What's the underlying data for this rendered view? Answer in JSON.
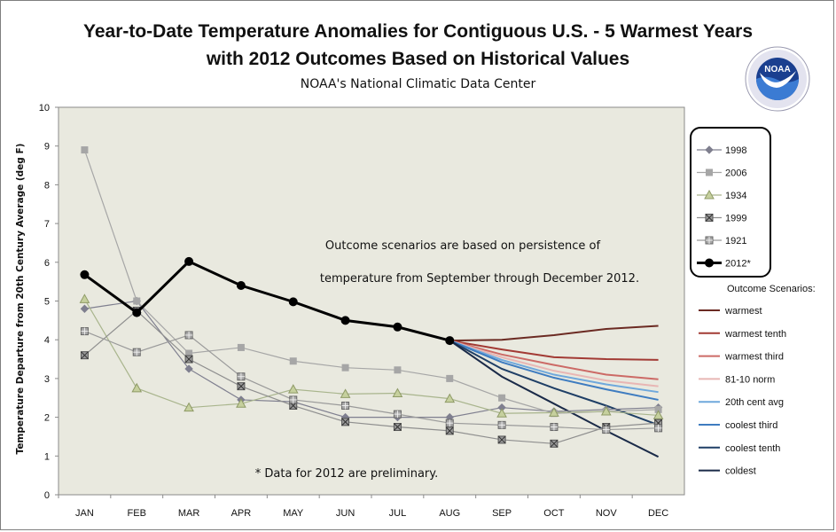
{
  "title_line1": "Year-to-Date Temperature Anomalies for Contiguous U.S. - 5 Warmest Years",
  "title_line2": "with 2012 Outcomes Based on Historical Values",
  "subtitle": "NOAA's National Climatic Data Center",
  "logo": {
    "icon": "noaa-logo",
    "text": "NOAA",
    "ring_text": "NATIONAL OCEANIC AND ATMOSPHERIC ADMINISTRATION · U.S. DEPARTMENT OF COMMERCE"
  },
  "annotations": {
    "scenario_line1": "Outcome scenarios are based on persistence of",
    "scenario_line2": "temperature from September through December 2012.",
    "preliminary_note": "* Data for 2012 are preliminary."
  },
  "outcome_header": "Outcome Scenarios:",
  "chart_data": {
    "type": "line",
    "title": "Year-to-Date Temperature Anomalies for Contiguous U.S. - 5 Warmest Years",
    "subtitle": "with 2012 Outcomes Based on Historical Values",
    "xlabel": "",
    "ylabel": "Temperature Departure from 20th Century Average (deg F)",
    "categories": [
      "JAN",
      "FEB",
      "MAR",
      "APR",
      "MAY",
      "JUN",
      "JUL",
      "AUG",
      "SEP",
      "OCT",
      "NOV",
      "DEC"
    ],
    "ylim": [
      0,
      10
    ],
    "yticks": [
      0,
      1,
      2,
      3,
      4,
      5,
      6,
      7,
      8,
      9,
      10
    ],
    "grid": false,
    "plot_background": "#e9e9df",
    "legend_position": "right",
    "series": [
      {
        "name": "1998",
        "color": "#7f7f8f",
        "marker": "diamond",
        "values": [
          4.8,
          5.0,
          3.25,
          2.45,
          2.4,
          2.0,
          2.0,
          2.0,
          2.25,
          2.15,
          2.2,
          2.25
        ]
      },
      {
        "name": "2006",
        "color": "#a6a6a6",
        "marker": "square",
        "values": [
          8.9,
          5.0,
          3.65,
          3.8,
          3.45,
          3.28,
          3.22,
          3.0,
          2.5,
          2.1,
          2.15,
          2.2
        ]
      },
      {
        "name": "1934",
        "color": "#a9b58d",
        "marker": "triangle",
        "values": [
          5.05,
          2.75,
          2.25,
          2.35,
          2.72,
          2.6,
          2.62,
          2.48,
          2.1,
          2.12,
          2.15,
          2.05
        ]
      },
      {
        "name": "1999",
        "color": "#8f8f8f",
        "marker": "x-square",
        "values": [
          3.6,
          4.75,
          3.5,
          2.8,
          2.3,
          1.88,
          1.75,
          1.65,
          1.42,
          1.32,
          1.75,
          1.85
        ]
      },
      {
        "name": "1921",
        "color": "#9a9a9a",
        "marker": "plus-square",
        "values": [
          4.22,
          3.68,
          4.12,
          3.05,
          2.45,
          2.3,
          2.08,
          1.85,
          1.8,
          1.75,
          1.68,
          1.72
        ]
      },
      {
        "name": "2012*",
        "color": "#000000",
        "marker": "circle",
        "values": [
          5.68,
          4.7,
          6.02,
          5.4,
          4.98,
          4.5,
          4.33,
          3.98,
          null,
          null,
          null,
          null
        ]
      }
    ],
    "outcome_scenarios": [
      {
        "name": "warmest",
        "color": "#6b2a22",
        "values": [
          3.98,
          4.0,
          4.12,
          4.28,
          4.36
        ]
      },
      {
        "name": "warmest tenth",
        "color": "#a23a34",
        "values": [
          3.98,
          3.75,
          3.55,
          3.5,
          3.48
        ]
      },
      {
        "name": "warmest third",
        "color": "#cc6a66",
        "values": [
          3.98,
          3.62,
          3.35,
          3.1,
          2.98
        ]
      },
      {
        "name": "81-10 norm",
        "color": "#e8b6b4",
        "values": [
          3.98,
          3.55,
          3.2,
          2.95,
          2.8
        ]
      },
      {
        "name": "20th cent avg",
        "color": "#6fa8dc",
        "values": [
          3.98,
          3.48,
          3.1,
          2.85,
          2.65
        ]
      },
      {
        "name": "coolest third",
        "color": "#3e7cc0",
        "values": [
          3.98,
          3.42,
          3.02,
          2.72,
          2.45
        ]
      },
      {
        "name": "coolest tenth",
        "color": "#1f3f66",
        "values": [
          3.98,
          3.25,
          2.75,
          2.3,
          1.8
        ]
      },
      {
        "name": "coldest",
        "color": "#1a2a48",
        "values": [
          3.98,
          3.05,
          2.35,
          1.65,
          0.98
        ]
      }
    ],
    "outcome_x": [
      "AUG",
      "SEP",
      "OCT",
      "NOV",
      "DEC"
    ]
  }
}
